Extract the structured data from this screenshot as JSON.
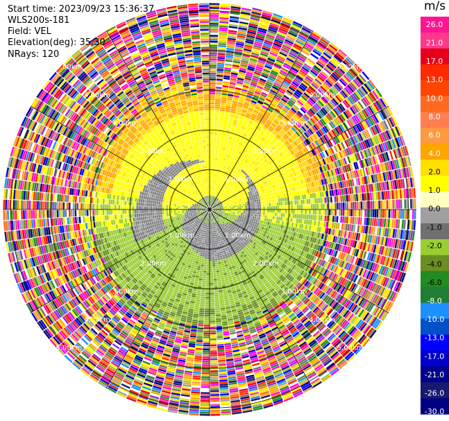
{
  "header": {
    "start_time": "Start time: 2023/09/23 15:36:37",
    "site": "WLS200s-181",
    "field": "Field: VEL",
    "elevation": "Elevation(deg): 35.30",
    "nrays": "NRays: 120"
  },
  "colorbar": {
    "unit": "m/s",
    "ticks": [
      "26.0",
      "21.0",
      "17.0",
      "13.0",
      "10.0",
      "8.0",
      "6.0",
      "4.0",
      "2.0",
      "1.0",
      "0.0",
      "-1.0",
      "-2.0",
      "-4.0",
      "-6.0",
      "-8.0",
      "-10.0",
      "-13.0",
      "-17.0",
      "-21.0",
      "-26.0",
      "-30.0"
    ],
    "colors": [
      "#ff1493",
      "#ff3a8a",
      "#e8001a",
      "#ff2a00",
      "#ff4500",
      "#ff6a20",
      "#ff7f50",
      "#ff9a40",
      "#ffa500",
      "#ffe000",
      "#ffff00",
      "#ffffc0",
      "#a0a0a0",
      "#707070",
      "#9acd32",
      "#6b8e23",
      "#228b22",
      "#1e7e34",
      "#1e90ff",
      "#0050c8",
      "#0000ff",
      "#0000cd",
      "#00008b",
      "#191970",
      "#000080"
    ]
  },
  "chart_data": {
    "type": "heatmap",
    "title": "",
    "projection": "polar PPI",
    "field": "VEL",
    "units": "m/s",
    "range_rings_km": [
      1.0,
      2.0,
      3.0,
      4.0,
      5.0
    ],
    "range_labels": [
      "1.00km",
      "2.00km",
      "3.00km",
      "4.00km",
      "5.00km"
    ],
    "spoke_angles_deg": [
      0,
      30,
      60,
      90,
      120,
      150,
      180,
      210,
      240,
      270,
      300,
      330
    ],
    "max_range_km": 5.2,
    "gate_spacing_km": 0.05,
    "nrays": 120,
    "vmin": -30.0,
    "vmax": 30.0
  }
}
